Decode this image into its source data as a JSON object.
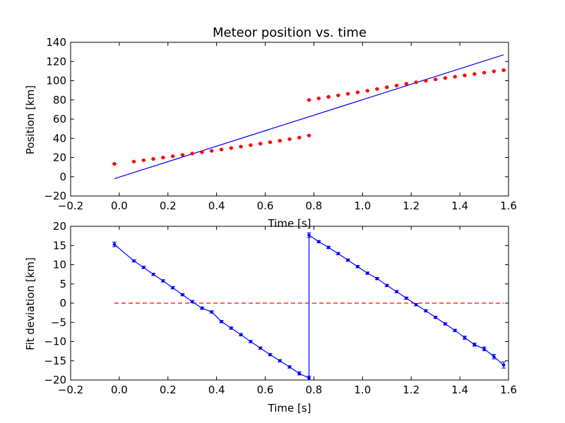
{
  "chart_data": [
    {
      "type": "scatter",
      "title": "Meteor position vs. time",
      "xlabel": "Time [s]",
      "ylabel": "Position [km]",
      "xlim": [
        -0.2,
        1.6
      ],
      "ylim": [
        -20,
        140
      ],
      "xticks": [
        "−0.2",
        "0.0",
        "0.2",
        "0.4",
        "0.6",
        "0.8",
        "1.0",
        "1.2",
        "1.4",
        "1.6"
      ],
      "yticks": [
        "−20",
        "0",
        "20",
        "40",
        "60",
        "80",
        "100",
        "120",
        "140"
      ],
      "points": {
        "color": "#ff0000",
        "x": [
          -0.02,
          0.06,
          0.1,
          0.14,
          0.18,
          0.22,
          0.26,
          0.3,
          0.34,
          0.38,
          0.42,
          0.46,
          0.5,
          0.54,
          0.58,
          0.62,
          0.66,
          0.7,
          0.74,
          0.78,
          0.78,
          0.82,
          0.86,
          0.9,
          0.94,
          0.98,
          1.02,
          1.06,
          1.1,
          1.14,
          1.18,
          1.22,
          1.26,
          1.3,
          1.34,
          1.38,
          1.42,
          1.46,
          1.5,
          1.54,
          1.58
        ],
        "y": [
          13.5,
          15.8,
          17.2,
          18.6,
          20.0,
          21.4,
          22.8,
          24.2,
          25.6,
          27.0,
          28.4,
          29.9,
          31.4,
          33.0,
          34.5,
          36.0,
          37.6,
          39.2,
          40.8,
          43.0,
          80.0,
          81.6,
          83.2,
          84.8,
          86.4,
          88.0,
          89.6,
          91.4,
          93.2,
          95.0,
          96.8,
          98.4,
          100.0,
          101.4,
          102.8,
          104.2,
          105.6,
          107.0,
          108.4,
          109.8,
          111.0
        ]
      },
      "fit_line": {
        "color": "#0000ff",
        "x": [
          -0.02,
          1.58
        ],
        "y": [
          -2,
          127
        ]
      }
    },
    {
      "type": "line",
      "title": "",
      "xlabel": "Time [s]",
      "ylabel": "Fit deviation [km]",
      "xlim": [
        -0.2,
        1.6
      ],
      "ylim": [
        -20,
        20
      ],
      "xticks": [
        "−0.2",
        "0.0",
        "0.2",
        "0.4",
        "0.6",
        "0.8",
        "1.0",
        "1.2",
        "1.4",
        "1.6"
      ],
      "yticks": [
        "−20",
        "−15",
        "−10",
        "−5",
        "0",
        "5",
        "10",
        "15",
        "20"
      ],
      "series": [
        {
          "color": "#0000ff",
          "x": [
            -0.02,
            0.06,
            0.1,
            0.14,
            0.18,
            0.22,
            0.26,
            0.3,
            0.34,
            0.38,
            0.42,
            0.46,
            0.5,
            0.54,
            0.58,
            0.62,
            0.66,
            0.7,
            0.74,
            0.78,
            0.78,
            0.82,
            0.86,
            0.9,
            0.94,
            0.98,
            1.02,
            1.06,
            1.1,
            1.14,
            1.18,
            1.22,
            1.26,
            1.3,
            1.34,
            1.38,
            1.42,
            1.46,
            1.5,
            1.54,
            1.58
          ],
          "y": [
            15.3,
            11.0,
            9.3,
            7.5,
            5.8,
            4.0,
            2.2,
            0.4,
            -1.3,
            -2.3,
            -4.8,
            -6.5,
            -8.2,
            -10.0,
            -11.7,
            -13.4,
            -15.0,
            -16.6,
            -18.3,
            -19.5,
            17.7,
            16.0,
            14.5,
            12.9,
            11.2,
            9.5,
            7.8,
            6.4,
            4.6,
            3.0,
            1.3,
            -0.4,
            -2.0,
            -3.7,
            -5.4,
            -7.1,
            -9.0,
            -10.8,
            -11.9,
            -13.9,
            -16.1
          ],
          "err": [
            0.6,
            0.3,
            0.3,
            0.3,
            0.3,
            0.3,
            0.3,
            0.3,
            0.3,
            0.3,
            0.3,
            0.3,
            0.3,
            0.3,
            0.3,
            0.3,
            0.3,
            0.3,
            0.4,
            0.5,
            0.6,
            0.3,
            0.3,
            0.3,
            0.3,
            0.3,
            0.3,
            0.3,
            0.3,
            0.3,
            0.3,
            0.3,
            0.3,
            0.3,
            0.3,
            0.3,
            0.4,
            0.4,
            0.5,
            0.6,
            0.8
          ]
        }
      ],
      "reference_line": {
        "color": "#ff0000",
        "style": "dashed",
        "y": 0,
        "x": [
          -0.02,
          1.58
        ]
      }
    }
  ]
}
